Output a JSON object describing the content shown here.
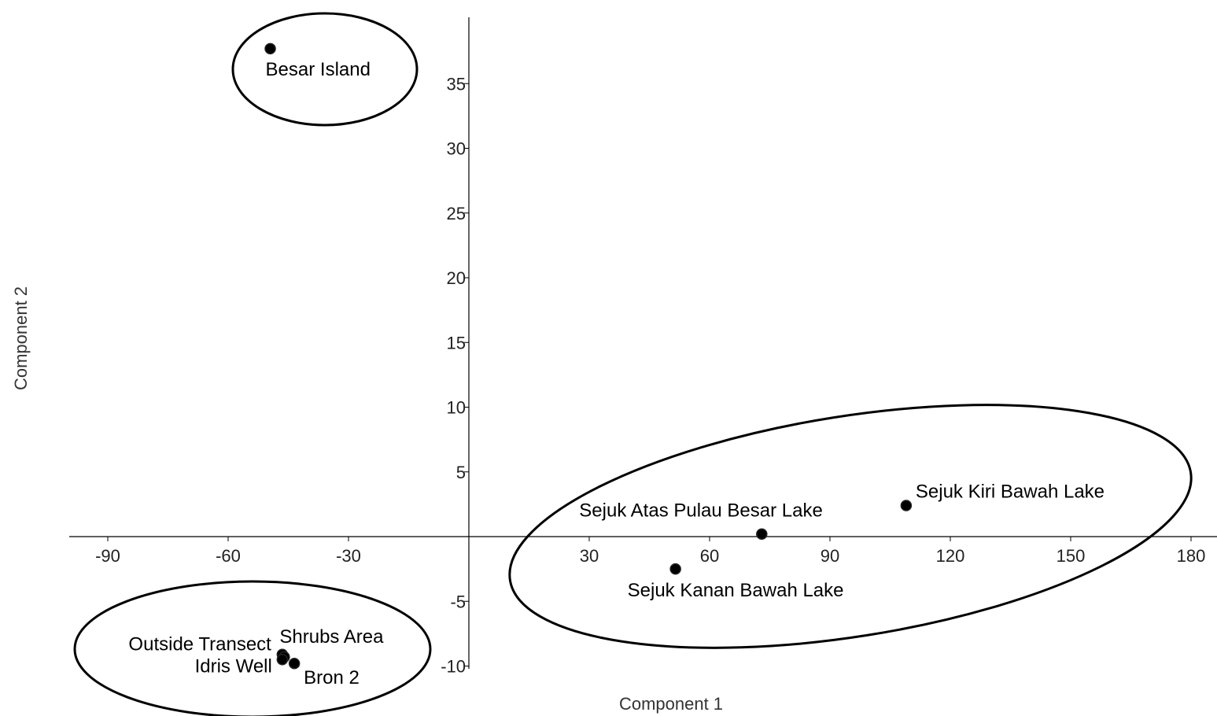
{
  "chart_data": {
    "type": "scatter",
    "xlabel": "Component 1",
    "ylabel": "Component 2",
    "xlim": [
      -100,
      186
    ],
    "ylim": [
      -11.5,
      40
    ],
    "x_ticks": [
      -90,
      -60,
      -30,
      30,
      60,
      90,
      120,
      150,
      180
    ],
    "y_ticks": [
      -10,
      -5,
      5,
      10,
      15,
      20,
      25,
      30,
      35
    ],
    "points": [
      {
        "label": "Besar Island",
        "x": -49.5,
        "y": 37.7
      },
      {
        "label": "Sejuk Kiri Bawah Lake",
        "x": 109,
        "y": 2.4
      },
      {
        "label": "Sejuk Atas Pulau Besar Lake",
        "x": 73,
        "y": 0.2
      },
      {
        "label": "Sejuk Kanan Bawah Lake",
        "x": 51.5,
        "y": -2.5
      },
      {
        "label": "Outside Transect",
        "x": -46.5,
        "y": -9.1
      },
      {
        "label": "Shrubs Area",
        "x": -46,
        "y": -9.3
      },
      {
        "label": "Idris Well",
        "x": -46.5,
        "y": -9.5
      },
      {
        "label": "Bron 2",
        "x": -43.5,
        "y": -9.8
      }
    ]
  }
}
